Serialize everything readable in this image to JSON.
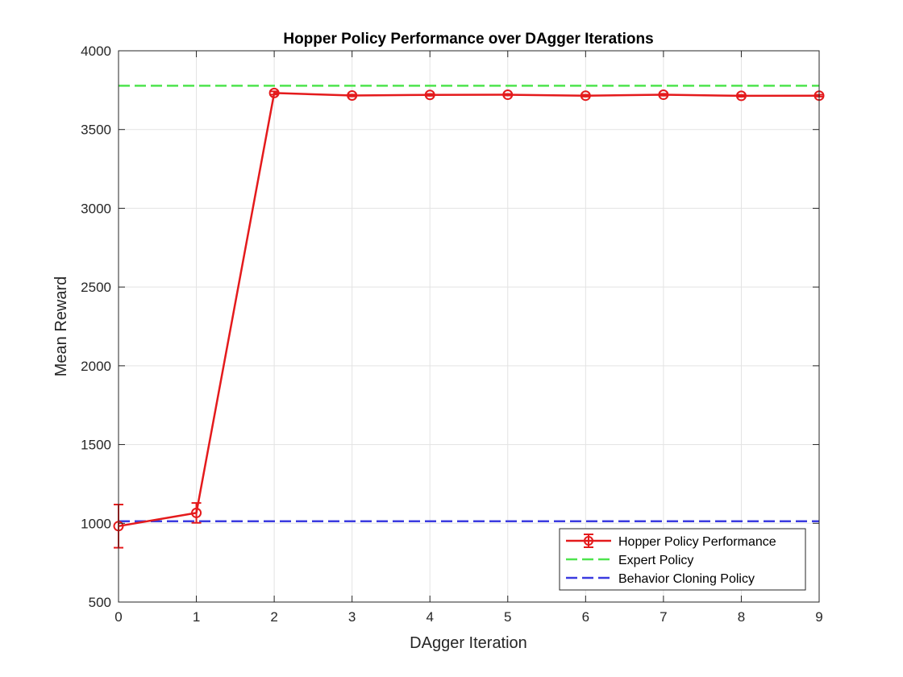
{
  "chart_data": {
    "type": "line",
    "title": "Hopper Policy Performance over DAgger Iterations",
    "xlabel": "DAgger Iteration",
    "ylabel": "Mean Reward",
    "xlim": [
      0,
      9
    ],
    "ylim": [
      500,
      4000
    ],
    "xticks": [
      "0",
      "1",
      "2",
      "3",
      "4",
      "5",
      "6",
      "7",
      "8",
      "9"
    ],
    "yticks": [
      "500",
      "1000",
      "1500",
      "2000",
      "2500",
      "3000",
      "3500",
      "4000"
    ],
    "grid": true,
    "legend_position": "bottom-right",
    "series": [
      {
        "name": "Hopper Policy Performance",
        "style": "solid-with-circle-markers-and-error-bars",
        "color": "#e41a1c",
        "x": [
          0,
          1,
          2,
          3,
          4,
          5,
          6,
          7,
          8,
          9
        ],
        "values": [
          982,
          1066,
          3732,
          3716,
          3720,
          3721,
          3715,
          3721,
          3714,
          3715
        ],
        "error": [
          137,
          63,
          10,
          6,
          6,
          5,
          6,
          6,
          6,
          6
        ]
      },
      {
        "name": "Expert Policy",
        "style": "dashed",
        "color": "#4ee44e",
        "value": 3778
      },
      {
        "name": "Behavior Cloning Policy",
        "style": "dashed",
        "color": "#3b3be0",
        "value": 1013
      }
    ]
  }
}
